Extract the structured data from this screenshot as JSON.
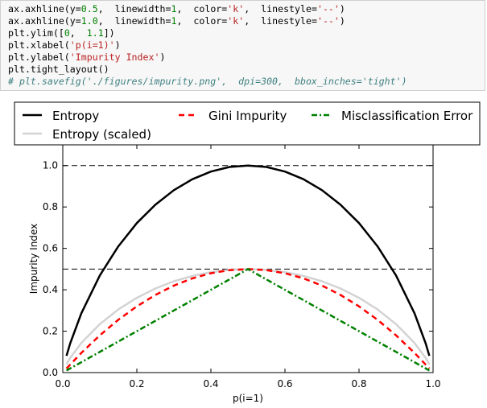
{
  "code_cell": {
    "lines": [
      [
        {
          "t": "ax.axhline(y=",
          "c": "plain"
        },
        {
          "t": "0.5",
          "c": "num"
        },
        {
          "t": ",  linewidth=",
          "c": "plain"
        },
        {
          "t": "1",
          "c": "num"
        },
        {
          "t": ",  color=",
          "c": "plain"
        },
        {
          "t": "'k'",
          "c": "str"
        },
        {
          "t": ",  linestyle=",
          "c": "plain"
        },
        {
          "t": "'--'",
          "c": "str"
        },
        {
          "t": ")",
          "c": "plain"
        }
      ],
      [
        {
          "t": "ax.axhline(y=",
          "c": "plain"
        },
        {
          "t": "1.0",
          "c": "num"
        },
        {
          "t": ",  linewidth=",
          "c": "plain"
        },
        {
          "t": "1",
          "c": "num"
        },
        {
          "t": ",  color=",
          "c": "plain"
        },
        {
          "t": "'k'",
          "c": "str"
        },
        {
          "t": ",  linestyle=",
          "c": "plain"
        },
        {
          "t": "'--'",
          "c": "str"
        },
        {
          "t": ")",
          "c": "plain"
        }
      ],
      [
        {
          "t": "plt.ylim([",
          "c": "plain"
        },
        {
          "t": "0",
          "c": "num"
        },
        {
          "t": ",  ",
          "c": "plain"
        },
        {
          "t": "1.1",
          "c": "num"
        },
        {
          "t": "])",
          "c": "plain"
        }
      ],
      [
        {
          "t": "plt.xlabel(",
          "c": "plain"
        },
        {
          "t": "'p(i=1)'",
          "c": "str"
        },
        {
          "t": ")",
          "c": "plain"
        }
      ],
      [
        {
          "t": "plt.ylabel(",
          "c": "plain"
        },
        {
          "t": "'Impurity Index'",
          "c": "str"
        },
        {
          "t": ")",
          "c": "plain"
        }
      ],
      [
        {
          "t": "plt.tight_layout()",
          "c": "plain"
        }
      ],
      [
        {
          "t": "# plt.savefig('./figures/impurity.png',  dpi=300,  bbox_inches='tight')",
          "c": "comment"
        }
      ]
    ],
    "colors": {
      "num": "#008000",
      "str": "#ba2121",
      "comment": "#408080",
      "background": "#f7f7f7"
    }
  },
  "chart_data": {
    "type": "line",
    "xlabel": "p(i=1)",
    "ylabel": "Impurity Index",
    "xlim": [
      0.0,
      1.0
    ],
    "ylim": [
      0.0,
      1.1
    ],
    "xticks": [
      "0.0",
      "0.2",
      "0.4",
      "0.6",
      "0.8",
      "1.0"
    ],
    "yticks": [
      "0.0",
      "0.2",
      "0.4",
      "0.6",
      "0.8",
      "1.0"
    ],
    "hlines": [
      0.5,
      1.0
    ],
    "legend_placement": "top, above plot, 3 columns",
    "series": [
      {
        "name": "Entropy",
        "color": "#000000",
        "linestyle": "solid",
        "x": [
          0.01,
          0.02,
          0.05,
          0.1,
          0.15,
          0.2,
          0.25,
          0.3,
          0.35,
          0.4,
          0.45,
          0.5,
          0.55,
          0.6,
          0.65,
          0.7,
          0.75,
          0.8,
          0.85,
          0.9,
          0.95,
          0.98,
          0.99
        ],
        "y": [
          0.081,
          0.141,
          0.286,
          0.469,
          0.61,
          0.722,
          0.811,
          0.881,
          0.934,
          0.971,
          0.993,
          1.0,
          0.993,
          0.971,
          0.934,
          0.881,
          0.811,
          0.722,
          0.61,
          0.469,
          0.286,
          0.141,
          0.081
        ]
      },
      {
        "name": "Entropy (scaled)",
        "color": "#d3d3d3",
        "linestyle": "solid",
        "x": [
          0.01,
          0.02,
          0.05,
          0.1,
          0.15,
          0.2,
          0.25,
          0.3,
          0.35,
          0.4,
          0.45,
          0.5,
          0.55,
          0.6,
          0.65,
          0.7,
          0.75,
          0.8,
          0.85,
          0.9,
          0.95,
          0.98,
          0.99
        ],
        "y": [
          0.04,
          0.071,
          0.143,
          0.234,
          0.305,
          0.361,
          0.406,
          0.441,
          0.467,
          0.485,
          0.496,
          0.5,
          0.496,
          0.485,
          0.467,
          0.441,
          0.406,
          0.361,
          0.305,
          0.234,
          0.143,
          0.071,
          0.04
        ]
      },
      {
        "name": "Gini Impurity",
        "color": "#ff0000",
        "linestyle": "dashed",
        "x": [
          0.01,
          0.05,
          0.1,
          0.15,
          0.2,
          0.25,
          0.3,
          0.35,
          0.4,
          0.45,
          0.5,
          0.55,
          0.6,
          0.65,
          0.7,
          0.75,
          0.8,
          0.85,
          0.9,
          0.95,
          0.99
        ],
        "y": [
          0.02,
          0.095,
          0.18,
          0.255,
          0.32,
          0.375,
          0.42,
          0.455,
          0.48,
          0.495,
          0.5,
          0.495,
          0.48,
          0.455,
          0.42,
          0.375,
          0.32,
          0.255,
          0.18,
          0.095,
          0.02
        ]
      },
      {
        "name": "Misclassification Error",
        "color": "#008000",
        "linestyle": "dashdot",
        "x": [
          0.01,
          0.5,
          0.99
        ],
        "y": [
          0.01,
          0.5,
          0.01
        ]
      }
    ]
  }
}
